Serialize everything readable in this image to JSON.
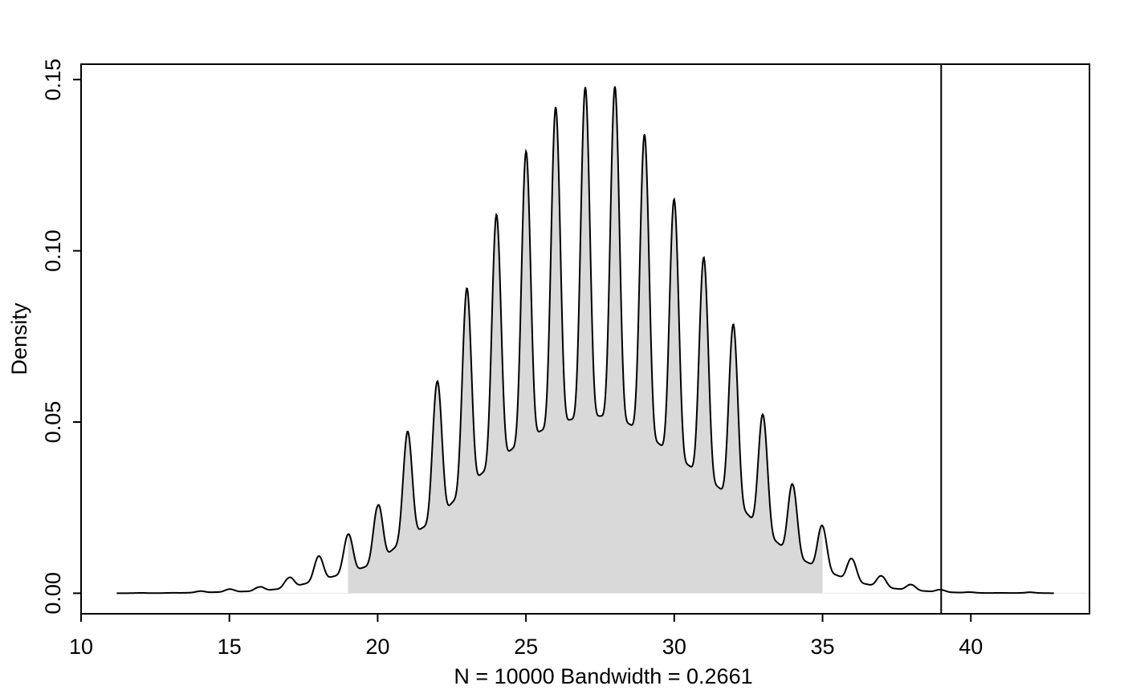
{
  "chart_data": {
    "type": "area",
    "title": "",
    "xlabel": "N = 10000   Bandwidth = 0.2661",
    "ylabel": "Density",
    "xlim": [
      10,
      44
    ],
    "ylim": [
      -0.006,
      0.1545
    ],
    "x_ticks": [
      10,
      15,
      20,
      25,
      30,
      35,
      40
    ],
    "y_ticks": [
      0.0,
      0.05,
      0.1,
      0.15
    ],
    "y_tick_labels": [
      "0.00",
      "0.05",
      "0.10",
      "0.15"
    ],
    "series": [
      {
        "x": [
          11.2,
          12,
          13,
          14,
          15,
          16,
          17,
          18,
          19,
          20,
          21,
          22,
          23,
          24,
          25,
          26,
          27,
          28,
          29,
          30,
          31,
          32,
          33,
          34,
          35,
          36,
          37,
          38,
          39,
          40,
          41,
          42,
          42.8
        ],
        "values": [
          0.0,
          0.0001,
          0.0001,
          0.0006,
          0.0012,
          0.0018,
          0.0045,
          0.0108,
          0.0172,
          0.0255,
          0.0472,
          0.0617,
          0.089,
          0.1105,
          0.129,
          0.142,
          0.1478,
          0.148,
          0.134,
          0.115,
          0.098,
          0.0785,
          0.052,
          0.0317,
          0.0197,
          0.01,
          0.005,
          0.0025,
          0.001,
          0.0003,
          0.0001,
          0.0003,
          0.0
        ],
        "color": "#000000"
      }
    ],
    "shaded_region": {
      "from": 19,
      "to": 35,
      "fill": "#d9d9d9"
    },
    "reference_line_x": 39,
    "grid": false,
    "legend": "none"
  }
}
